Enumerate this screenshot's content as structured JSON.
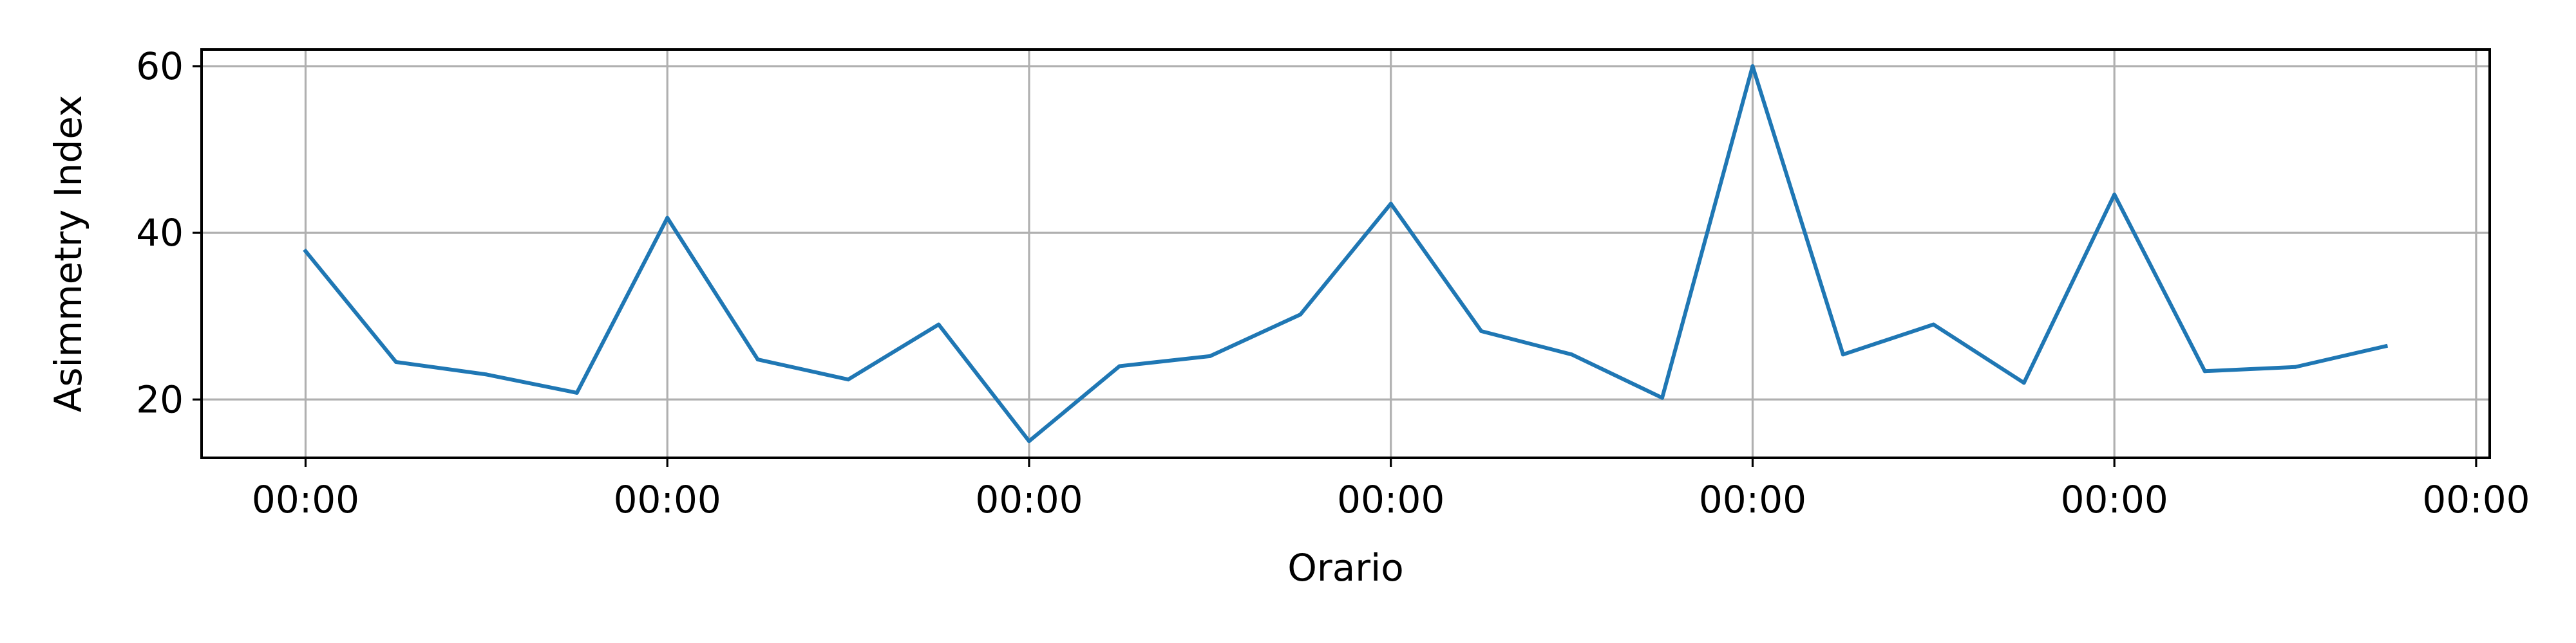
{
  "chart_data": {
    "type": "line",
    "title": "",
    "xlabel": "Orario",
    "ylabel": "Asimmetry Index",
    "x": [
      0,
      1,
      2,
      3,
      4,
      5,
      6,
      7,
      8,
      9,
      10,
      11,
      12,
      13,
      14,
      15,
      16,
      17,
      18,
      19,
      20,
      21,
      22,
      23
    ],
    "x_tick_positions": [
      0,
      4,
      8,
      12,
      16,
      20,
      24
    ],
    "x_tick_labels": [
      "00:00",
      "00:00",
      "00:00",
      "00:00",
      "00:00",
      "00:00",
      "00:00"
    ],
    "xlim": [
      -1.15,
      24.15
    ],
    "ylim": [
      13,
      62
    ],
    "y_ticks": [
      20,
      40,
      60
    ],
    "y_tick_labels": [
      "20",
      "40",
      "60"
    ],
    "grid": true,
    "series": [
      {
        "name": "",
        "color": "#1f77b4",
        "values": [
          37.8,
          24.5,
          23.0,
          20.8,
          41.8,
          24.8,
          22.4,
          29.0,
          15.0,
          24.0,
          25.2,
          30.2,
          43.5,
          28.2,
          25.4,
          20.2,
          60.0,
          25.4,
          29.0,
          22.0,
          44.6,
          23.4,
          23.9,
          26.4
        ]
      }
    ]
  }
}
